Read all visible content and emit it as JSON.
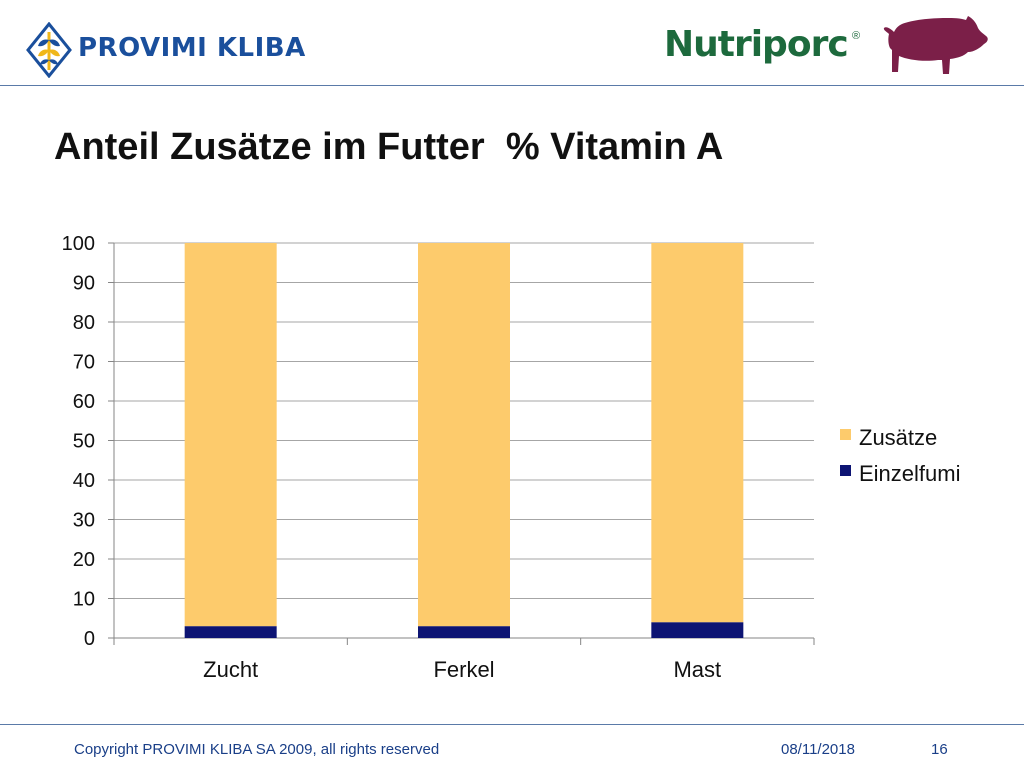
{
  "header": {
    "provimi_brand": "PROVIMI KLIBA",
    "nutriporc_brand": "Nutriporc",
    "nutriporc_reg": "®",
    "provimi_logo_icon": "wheat-leaf-icon",
    "pig_icon": "pig-silhouette-icon"
  },
  "slide": {
    "title": "Anteil Zusätze im Futter  % Vitamin A"
  },
  "chart_data": {
    "type": "bar",
    "stacked": true,
    "categories": [
      "Zucht",
      "Ferkel",
      "Mast"
    ],
    "series": [
      {
        "name": "Zusätze",
        "values": [
          97,
          97,
          96
        ],
        "color": "#fdcb6c"
      },
      {
        "name": "Einzelfumi",
        "values": [
          3,
          3,
          4
        ],
        "color": "#0d1473"
      }
    ],
    "ylim": [
      0,
      100
    ],
    "yticks": [
      0,
      10,
      20,
      30,
      40,
      50,
      60,
      70,
      80,
      90,
      100
    ],
    "grid": true,
    "legend_position": "right",
    "title": "",
    "xlabel": "",
    "ylabel": ""
  },
  "footer": {
    "copyright": "Copyright PROVIMI KLIBA SA 2009, all rights reserved",
    "date": "08/11/2018",
    "page": "16"
  },
  "colors": {
    "brand_blue": "#1a4f9c",
    "brand_green": "#1d6a3d",
    "pig_color": "#7b1f48",
    "footer_text": "#1a3f88",
    "rule": "#5a7aa8"
  }
}
